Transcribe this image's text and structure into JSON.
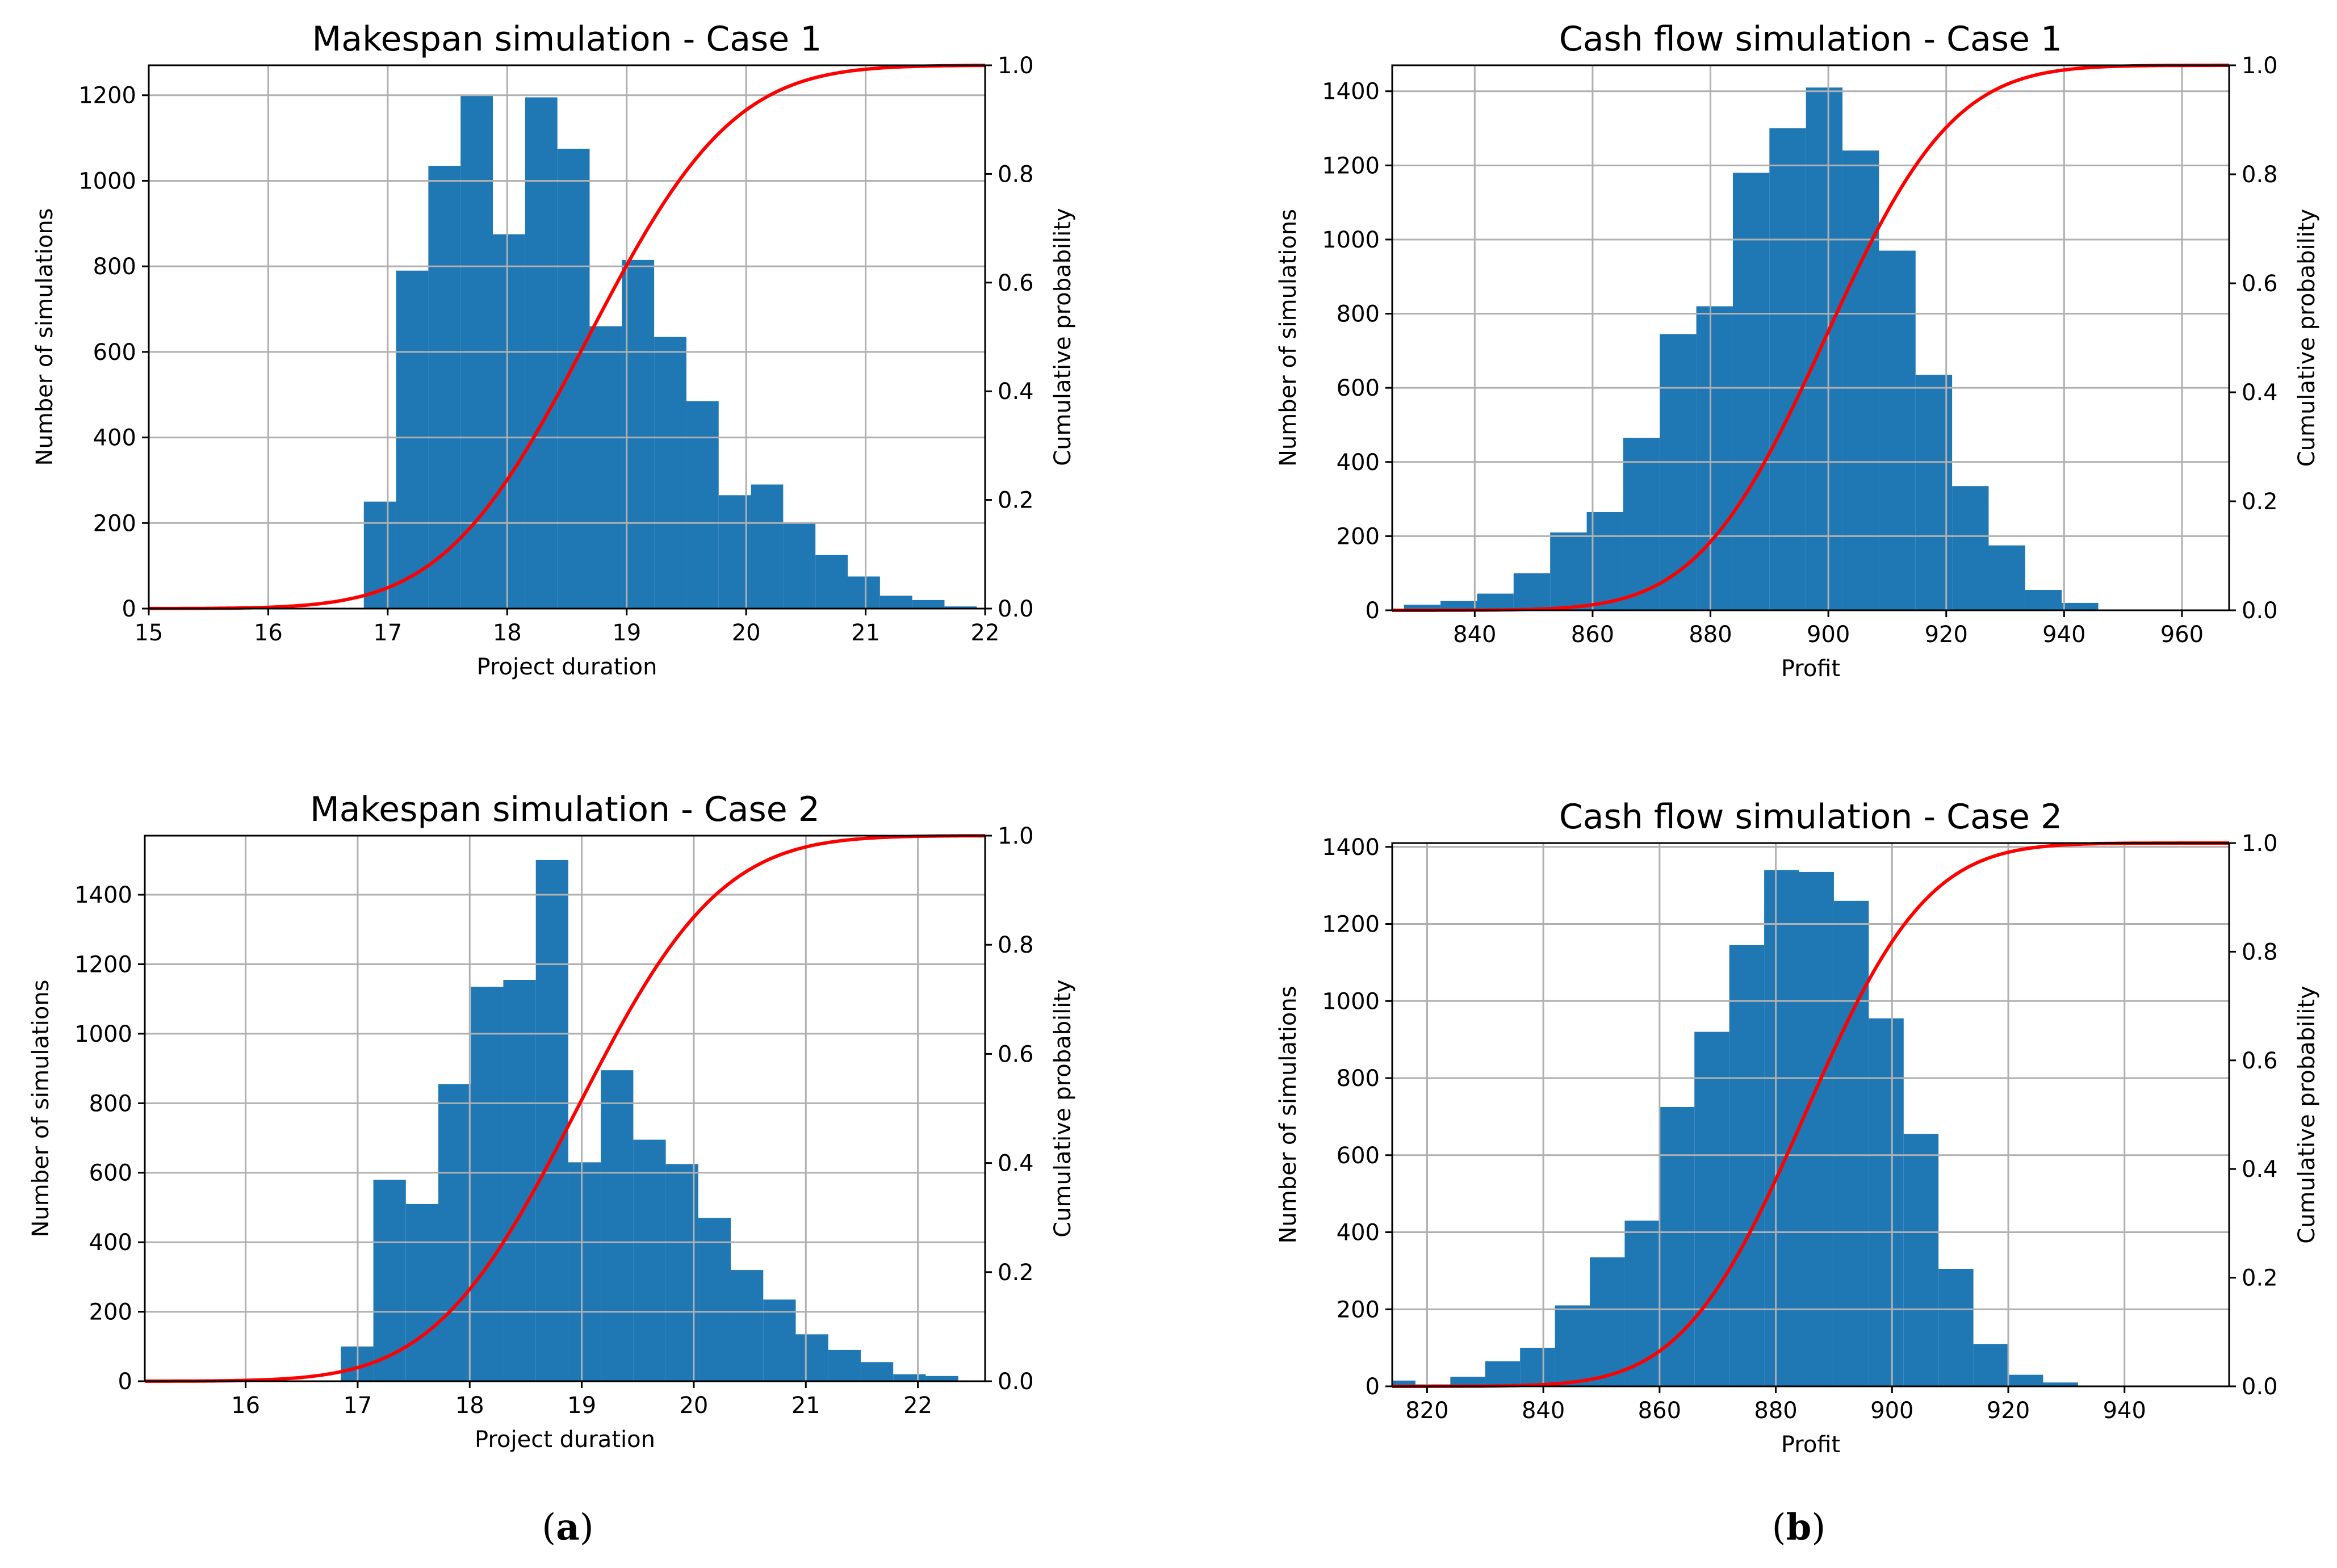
{
  "figure": {
    "captions": [
      {
        "open": "(",
        "letter": "a",
        "close": ")"
      },
      {
        "open": "(",
        "letter": "b",
        "close": ")"
      }
    ]
  },
  "chart_data": [
    {
      "type": "bar",
      "title": "Makespan simulation - Case 1",
      "xlabel": "Project duration",
      "ylabel": "Number of simulations",
      "y2label": "Cumulative probability",
      "xlim": [
        15,
        22
      ],
      "ylim": [
        0,
        1270
      ],
      "y2lim": [
        0,
        1.0
      ],
      "xticks": [
        15,
        16,
        17,
        18,
        19,
        20,
        21,
        22
      ],
      "yticks": [
        0,
        200,
        400,
        600,
        800,
        1000,
        1200
      ],
      "y2ticks": [
        "0.0",
        "0.2",
        "0.4",
        "0.6",
        "0.8",
        "1.0"
      ],
      "grid": true,
      "bar_color": "#1f77b4",
      "curve_color": "#ff0000",
      "bins": [
        16.8,
        17.07,
        17.34,
        17.61,
        17.88,
        18.15,
        18.42,
        18.69,
        18.96,
        19.23,
        19.5,
        19.77,
        20.04,
        20.31,
        20.58,
        20.85,
        21.12,
        21.39,
        21.66,
        21.93
      ],
      "counts": [
        250,
        790,
        1035,
        1200,
        875,
        1195,
        1075,
        660,
        815,
        635,
        485,
        265,
        290,
        200,
        125,
        75,
        30,
        20,
        5
      ],
      "cdf": {
        "mean": 18.68,
        "sd": 0.95,
        "x_range": [
          15,
          22
        ]
      }
    },
    {
      "type": "bar",
      "title": "Cash flow simulation - Case 1",
      "xlabel": "Profit",
      "ylabel": "Number of simulations",
      "y2label": "Cumulative probability",
      "xlim": [
        826,
        968
      ],
      "ylim": [
        0,
        1470
      ],
      "y2lim": [
        0,
        1.0
      ],
      "xticks": [
        840,
        860,
        880,
        900,
        920,
        940,
        960
      ],
      "yticks": [
        0,
        200,
        400,
        600,
        800,
        1000,
        1200,
        1400
      ],
      "y2ticks": [
        "0.0",
        "0.2",
        "0.4",
        "0.6",
        "0.8",
        "1.0"
      ],
      "grid": true,
      "bar_color": "#1f77b4",
      "curve_color": "#ff0000",
      "bins": [
        828,
        834.2,
        840.4,
        846.6,
        852.8,
        859,
        865.2,
        871.4,
        877.6,
        883.8,
        890,
        896.2,
        902.4,
        908.6,
        914.8,
        921,
        927.2,
        933.4,
        939.6,
        945.8,
        952
      ],
      "counts": [
        15,
        25,
        45,
        100,
        210,
        265,
        465,
        745,
        820,
        1180,
        1300,
        1410,
        1240,
        970,
        635,
        335,
        175,
        55,
        20,
        0
      ],
      "cdf": {
        "mean": 899.5,
        "sd": 17.0,
        "x_range": [
          826,
          968
        ]
      }
    },
    {
      "type": "bar",
      "title": "Makespan simulation - Case 2",
      "xlabel": "Project duration",
      "ylabel": "Number of simulations",
      "y2label": "Cumulative probability",
      "xlim": [
        15.1,
        22.6
      ],
      "ylim": [
        0,
        1570
      ],
      "y2lim": [
        0,
        1.0
      ],
      "xticks": [
        16,
        17,
        18,
        19,
        20,
        21,
        22
      ],
      "yticks": [
        0,
        200,
        400,
        600,
        800,
        1000,
        1200,
        1400
      ],
      "y2ticks": [
        "0.0",
        "0.2",
        "0.4",
        "0.6",
        "0.8",
        "1.0"
      ],
      "grid": true,
      "bar_color": "#1f77b4",
      "curve_color": "#ff0000",
      "bins": [
        16.85,
        17.14,
        17.43,
        17.72,
        18.01,
        18.3,
        18.59,
        18.88,
        19.17,
        19.46,
        19.75,
        20.04,
        20.33,
        20.62,
        20.91,
        21.2,
        21.49,
        21.78,
        22.07,
        22.36,
        22.6
      ],
      "counts": [
        100,
        580,
        510,
        855,
        1135,
        1155,
        1500,
        630,
        895,
        695,
        625,
        470,
        320,
        235,
        135,
        90,
        55,
        20,
        15,
        0
      ],
      "cdf": {
        "mean": 18.96,
        "sd": 1.0,
        "x_range": [
          15.1,
          22.6
        ]
      }
    },
    {
      "type": "bar",
      "title": "Cash flow simulation - Case 2",
      "xlabel": "Profit",
      "ylabel": "Number of simulations",
      "y2label": "Cumulative probability",
      "xlim": [
        814,
        958
      ],
      "ylim": [
        0,
        1410
      ],
      "y2lim": [
        0,
        1.0
      ],
      "xticks": [
        820,
        840,
        860,
        880,
        900,
        920,
        940
      ],
      "yticks": [
        0,
        200,
        400,
        600,
        800,
        1000,
        1200,
        1400
      ],
      "y2ticks": [
        "0.0",
        "0.2",
        "0.4",
        "0.6",
        "0.8",
        "1.0"
      ],
      "grid": true,
      "bar_color": "#1f77b4",
      "curve_color": "#ff0000",
      "bins": [
        814,
        818,
        824,
        830,
        836,
        842,
        848,
        854,
        860,
        866,
        872,
        878,
        884,
        890,
        896,
        902,
        908,
        914,
        920,
        926,
        932,
        938,
        944
      ],
      "counts": [
        15,
        5,
        25,
        65,
        100,
        210,
        335,
        430,
        725,
        920,
        1145,
        1340,
        1335,
        1260,
        955,
        655,
        305,
        110,
        30,
        10,
        0,
        0
      ],
      "cdf": {
        "mean": 885,
        "sd": 16.5,
        "x_range": [
          814,
          958
        ]
      }
    }
  ]
}
